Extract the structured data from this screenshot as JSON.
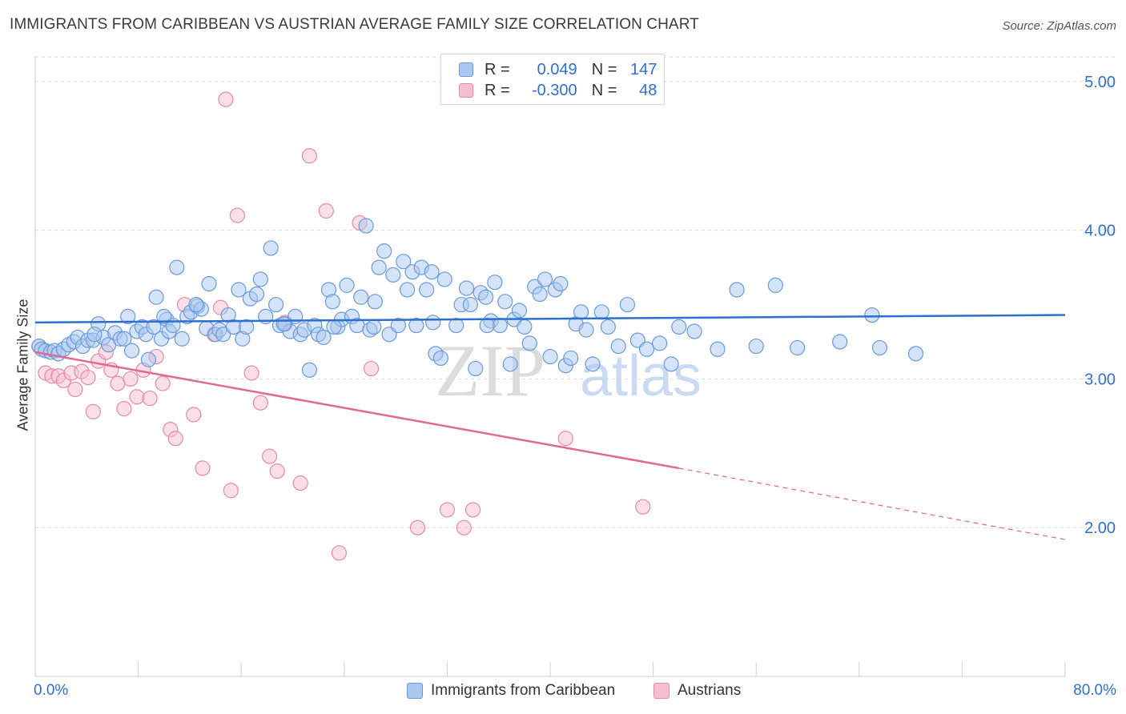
{
  "title": "IMMIGRANTS FROM CARIBBEAN VS AUSTRIAN AVERAGE FAMILY SIZE CORRELATION CHART",
  "source": "Source: ZipAtlas.com",
  "watermark": {
    "zip": "ZIP",
    "atlas": "atlas"
  },
  "legend_top": [
    {
      "r_label": "R =",
      "r_value": "0.049",
      "n_label": "N =",
      "n_value": "147"
    },
    {
      "r_label": "R =",
      "r_value": "-0.300",
      "n_label": "N =",
      "n_value": "48"
    }
  ],
  "colors": {
    "blue_fill": "#a9c8f0",
    "blue_stroke": "#6a9ad8",
    "blue_line": "#2d6fd0",
    "pink_fill": "#f5bfd0",
    "pink_stroke": "#e58aa8",
    "pink_line": "#e06a93",
    "tick_label": "#2f6fd1",
    "grid": "#d9d9d9"
  },
  "chart_data": {
    "type": "scatter",
    "xlabel": "",
    "ylabel": "Average Family Size",
    "xlim": [
      0,
      80
    ],
    "ylim": [
      1.0,
      5.15
    ],
    "x_tick_labels": [
      "0.0%",
      "80.0%"
    ],
    "y_ticks": [
      2.0,
      3.0,
      4.0,
      5.0
    ],
    "y_tick_labels": [
      "2.00",
      "3.00",
      "4.00",
      "5.00"
    ],
    "grid": "horizontal dashed",
    "legend": "bottom",
    "series": [
      {
        "name": "Immigrants from Caribbean",
        "r": 0.049,
        "n": 147,
        "trend": {
          "x": [
            0,
            80
          ],
          "y": [
            3.38,
            3.43
          ]
        },
        "points": [
          [
            0.3,
            3.22
          ],
          [
            0.5,
            3.2
          ],
          [
            0.8,
            3.19
          ],
          [
            1.2,
            3.18
          ],
          [
            1.5,
            3.19
          ],
          [
            1.8,
            3.17
          ],
          [
            2.2,
            3.2
          ],
          [
            2.6,
            3.23
          ],
          [
            3.0,
            3.25
          ],
          [
            3.3,
            3.28
          ],
          [
            3.7,
            3.22
          ],
          [
            4.1,
            3.26
          ],
          [
            4.5,
            3.26
          ],
          [
            4.9,
            3.37
          ],
          [
            5.3,
            3.28
          ],
          [
            5.7,
            3.23
          ],
          [
            6.2,
            3.31
          ],
          [
            6.6,
            3.27
          ],
          [
            6.9,
            3.27
          ],
          [
            7.2,
            3.42
          ],
          [
            7.5,
            3.19
          ],
          [
            7.9,
            3.32
          ],
          [
            8.3,
            3.35
          ],
          [
            8.6,
            3.3
          ],
          [
            8.8,
            3.13
          ],
          [
            9.2,
            3.35
          ],
          [
            9.4,
            3.55
          ],
          [
            9.8,
            3.27
          ],
          [
            10.2,
            3.4
          ],
          [
            10.4,
            3.32
          ],
          [
            10.7,
            3.36
          ],
          [
            11.0,
            3.75
          ],
          [
            11.4,
            3.27
          ],
          [
            11.8,
            3.42
          ],
          [
            12.1,
            3.45
          ],
          [
            12.6,
            3.49
          ],
          [
            12.9,
            3.47
          ],
          [
            13.3,
            3.34
          ],
          [
            13.5,
            3.64
          ],
          [
            14.0,
            3.3
          ],
          [
            14.3,
            3.33
          ],
          [
            14.6,
            3.3
          ],
          [
            15.0,
            3.43
          ],
          [
            15.4,
            3.35
          ],
          [
            15.8,
            3.6
          ],
          [
            16.1,
            3.27
          ],
          [
            16.4,
            3.35
          ],
          [
            16.7,
            3.54
          ],
          [
            17.2,
            3.57
          ],
          [
            17.5,
            3.67
          ],
          [
            17.9,
            3.42
          ],
          [
            18.3,
            3.88
          ],
          [
            18.7,
            3.5
          ],
          [
            19.0,
            3.36
          ],
          [
            19.4,
            3.37
          ],
          [
            19.8,
            3.32
          ],
          [
            20.2,
            3.42
          ],
          [
            20.6,
            3.3
          ],
          [
            20.9,
            3.33
          ],
          [
            21.3,
            3.06
          ],
          [
            21.7,
            3.36
          ],
          [
            22.0,
            3.3
          ],
          [
            22.4,
            3.28
          ],
          [
            22.8,
            3.6
          ],
          [
            23.1,
            3.52
          ],
          [
            23.5,
            3.35
          ],
          [
            23.8,
            3.4
          ],
          [
            24.2,
            3.63
          ],
          [
            24.6,
            3.42
          ],
          [
            25.0,
            3.36
          ],
          [
            25.3,
            3.55
          ],
          [
            25.7,
            4.03
          ],
          [
            26.0,
            3.33
          ],
          [
            26.4,
            3.52
          ],
          [
            26.7,
            3.75
          ],
          [
            27.1,
            3.86
          ],
          [
            27.5,
            3.3
          ],
          [
            27.8,
            3.7
          ],
          [
            28.2,
            3.36
          ],
          [
            28.6,
            3.79
          ],
          [
            28.9,
            3.6
          ],
          [
            29.3,
            3.72
          ],
          [
            29.6,
            3.36
          ],
          [
            30.0,
            3.75
          ],
          [
            30.4,
            3.6
          ],
          [
            30.8,
            3.72
          ],
          [
            31.1,
            3.17
          ],
          [
            31.5,
            3.14
          ],
          [
            31.8,
            3.67
          ],
          [
            32.7,
            3.36
          ],
          [
            33.1,
            3.5
          ],
          [
            33.5,
            3.61
          ],
          [
            33.8,
            3.5
          ],
          [
            34.2,
            3.07
          ],
          [
            34.6,
            3.58
          ],
          [
            35.0,
            3.55
          ],
          [
            35.4,
            3.39
          ],
          [
            35.7,
            3.65
          ],
          [
            36.1,
            3.36
          ],
          [
            36.5,
            3.52
          ],
          [
            36.9,
            3.1
          ],
          [
            37.2,
            3.4
          ],
          [
            37.6,
            3.46
          ],
          [
            38.0,
            3.35
          ],
          [
            38.4,
            3.24
          ],
          [
            38.8,
            3.62
          ],
          [
            39.2,
            3.57
          ],
          [
            39.6,
            3.67
          ],
          [
            40.0,
            3.15
          ],
          [
            40.4,
            3.6
          ],
          [
            40.8,
            3.64
          ],
          [
            41.2,
            3.09
          ],
          [
            41.6,
            3.14
          ],
          [
            42.0,
            3.37
          ],
          [
            42.4,
            3.45
          ],
          [
            42.8,
            3.33
          ],
          [
            43.3,
            3.1
          ],
          [
            44.0,
            3.45
          ],
          [
            44.5,
            3.35
          ],
          [
            45.3,
            3.22
          ],
          [
            46.0,
            3.5
          ],
          [
            46.8,
            3.26
          ],
          [
            47.5,
            3.2
          ],
          [
            48.5,
            3.24
          ],
          [
            49.4,
            3.1
          ],
          [
            50.0,
            3.35
          ],
          [
            51.2,
            3.32
          ],
          [
            53.0,
            3.2
          ],
          [
            54.5,
            3.6
          ],
          [
            56.0,
            3.22
          ],
          [
            57.5,
            3.63
          ],
          [
            59.2,
            3.21
          ],
          [
            62.5,
            3.25
          ],
          [
            65.0,
            3.43
          ],
          [
            65.6,
            3.21
          ],
          [
            68.4,
            3.17
          ],
          [
            12.5,
            3.5
          ],
          [
            19.3,
            3.37
          ],
          [
            23.2,
            3.35
          ],
          [
            26.3,
            3.35
          ],
          [
            30.9,
            3.38
          ],
          [
            35.1,
            3.36
          ],
          [
            10.0,
            3.42
          ],
          [
            4.6,
            3.3
          ]
        ]
      },
      {
        "name": "Austrians",
        "r": -0.3,
        "n": 48,
        "trend": {
          "x": [
            0,
            50
          ],
          "y": [
            3.18,
            2.4
          ]
        },
        "trend_dashed": {
          "x": [
            50,
            80
          ],
          "y": [
            2.4,
            1.92
          ]
        },
        "points": [
          [
            0.3,
            3.22
          ],
          [
            0.8,
            3.04
          ],
          [
            1.3,
            3.02
          ],
          [
            1.8,
            3.02
          ],
          [
            2.2,
            2.99
          ],
          [
            2.8,
            3.04
          ],
          [
            3.1,
            2.93
          ],
          [
            3.6,
            3.05
          ],
          [
            4.1,
            3.01
          ],
          [
            4.5,
            2.78
          ],
          [
            4.9,
            3.12
          ],
          [
            5.5,
            3.18
          ],
          [
            5.9,
            3.06
          ],
          [
            6.4,
            2.97
          ],
          [
            6.9,
            2.8
          ],
          [
            7.4,
            3.0
          ],
          [
            7.9,
            2.88
          ],
          [
            8.4,
            3.06
          ],
          [
            8.9,
            2.87
          ],
          [
            9.4,
            3.15
          ],
          [
            9.9,
            2.97
          ],
          [
            10.5,
            2.66
          ],
          [
            10.9,
            2.6
          ],
          [
            11.6,
            3.5
          ],
          [
            12.3,
            2.76
          ],
          [
            13.0,
            2.4
          ],
          [
            13.9,
            3.3
          ],
          [
            14.4,
            3.48
          ],
          [
            15.2,
            2.25
          ],
          [
            15.7,
            4.1
          ],
          [
            16.8,
            3.04
          ],
          [
            17.5,
            2.84
          ],
          [
            18.2,
            2.48
          ],
          [
            18.8,
            2.38
          ],
          [
            19.4,
            3.38
          ],
          [
            20.6,
            2.3
          ],
          [
            21.3,
            4.5
          ],
          [
            22.6,
            4.13
          ],
          [
            23.6,
            1.83
          ],
          [
            25.2,
            4.05
          ],
          [
            26.1,
            3.07
          ],
          [
            29.7,
            2.0
          ],
          [
            32.0,
            2.12
          ],
          [
            33.3,
            2.0
          ],
          [
            34.0,
            2.12
          ],
          [
            41.2,
            2.6
          ],
          [
            47.2,
            2.14
          ],
          [
            14.8,
            4.88
          ]
        ]
      }
    ]
  }
}
